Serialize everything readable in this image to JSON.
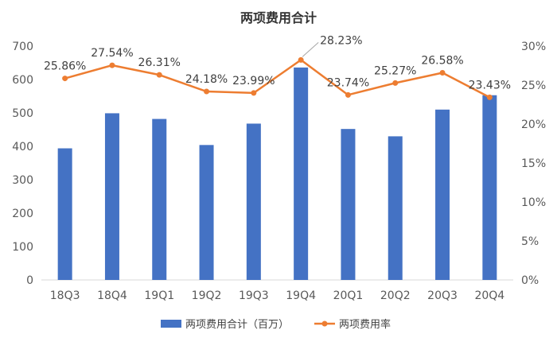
{
  "chart_data": {
    "type": "bar",
    "title": "两项费用合计",
    "categories": [
      "18Q3",
      "18Q4",
      "19Q1",
      "19Q2",
      "19Q3",
      "19Q4",
      "20Q1",
      "20Q2",
      "20Q3",
      "20Q4"
    ],
    "series": [
      {
        "name": "两项费用合计（百万）",
        "type": "bar",
        "axis": "left",
        "color": "#4472C4",
        "values": [
          394,
          499,
          482,
          404,
          468,
          636,
          452,
          430,
          510,
          553
        ]
      },
      {
        "name": "两项费用率",
        "type": "line",
        "axis": "right",
        "color": "#ED7D31",
        "values": [
          25.86,
          27.54,
          26.31,
          24.18,
          23.99,
          28.23,
          23.74,
          25.27,
          26.58,
          23.43
        ],
        "labels": [
          "25.86%",
          "27.54%",
          "26.31%",
          "24.18%",
          "23.99%",
          "28.23%",
          "23.74%",
          "25.27%",
          "26.58%",
          "23.43%"
        ]
      }
    ],
    "y_left": {
      "min": 0,
      "max": 700,
      "step": 100,
      "ticks": [
        "0",
        "100",
        "200",
        "300",
        "400",
        "500",
        "600",
        "700"
      ]
    },
    "y_right": {
      "min": 0,
      "max": 30,
      "step": 5,
      "ticks": [
        "0%",
        "5%",
        "10%",
        "15%",
        "20%",
        "25%",
        "30%"
      ]
    },
    "grid": false,
    "legend_position": "bottom"
  }
}
